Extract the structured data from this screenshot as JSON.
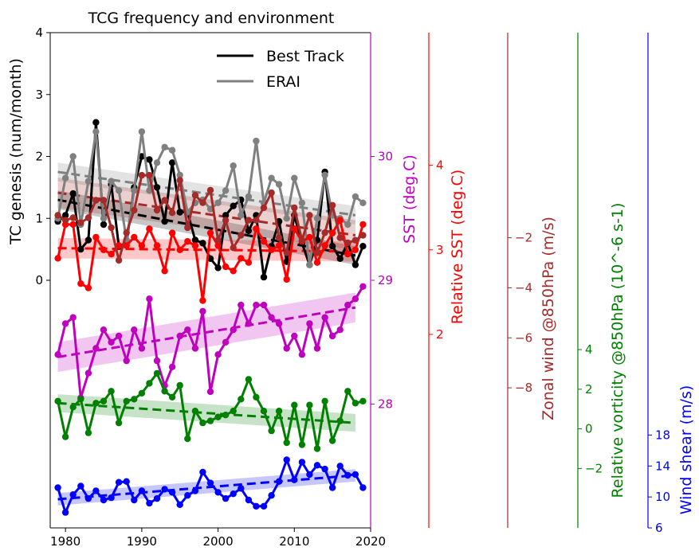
{
  "chart_data": {
    "type": "line",
    "title": "TCG frequency and environment",
    "x_axis": {
      "range": [
        1978,
        2020
      ],
      "ticks": [
        1980,
        1990,
        2000,
        2010,
        2020
      ]
    },
    "legend": {
      "placement": "top-right",
      "entries": [
        {
          "label": "Best Track",
          "color": "#000000"
        },
        {
          "label": "ERAI",
          "color": "#808080"
        }
      ]
    },
    "axes": [
      {
        "key": "tcg",
        "label": "TC genesis (num/month)",
        "color": "#000000",
        "range": [
          -4,
          4
        ],
        "ticks": [
          0,
          1,
          2,
          3,
          4
        ]
      },
      {
        "key": "sst",
        "label": "SST (deg.C)",
        "color": "#bf00bf",
        "range": [
          27.0,
          31.0
        ],
        "ticks": [
          28,
          29,
          30
        ]
      },
      {
        "key": "rsst",
        "label": "Relative SST (deg.C)",
        "color": "#ff0000",
        "range": [
          -0.29,
          5.57
        ],
        "ticks": [
          2,
          3,
          4
        ]
      },
      {
        "key": "zonal",
        "label": "Zonal wind @850hPa (m/s)",
        "color": "#a52a2a",
        "range": [
          -13.6,
          6.2
        ],
        "ticks": [
          -8,
          -6,
          -4,
          -2
        ],
        "tick_labels": [
          "−8",
          "−6",
          "−4",
          "−2"
        ]
      },
      {
        "key": "vort",
        "label": "Relative vorticity @850hPa (10^-6 s-1)",
        "color": "#008000",
        "range": [
          -5,
          20
        ],
        "ticks": [
          -2,
          0,
          2,
          4
        ],
        "tick_labels": [
          "−2",
          "0",
          "2",
          "4"
        ]
      },
      {
        "key": "shear",
        "label": "Wind shear (m/s)",
        "color": "#0000ff",
        "range": [
          6,
          70
        ],
        "ticks": [
          6,
          10,
          14,
          18
        ]
      }
    ],
    "series": [
      {
        "name": "Best Track",
        "axis": "tcg",
        "color": "#000000",
        "values": [
          0.95,
          1.05,
          1.4,
          0.5,
          0.65,
          2.55,
          0.9,
          1.55,
          0.55,
          0.6,
          1.5,
          2.0,
          1.95,
          1.5,
          0.95,
          1.9,
          1.1,
          1.1,
          0.65,
          0.6,
          0.35,
          0.2,
          1.05,
          1.2,
          1.3,
          0.8,
          1.05,
          0.05,
          0.55,
          0.95,
          0.3,
          1.05,
          0.6,
          0.25,
          0.65,
          1.75,
          0.55,
          0.35,
          0.6,
          0.25,
          0.55
        ],
        "trend": [
          1.3,
          0.4
        ],
        "band": 0.15
      },
      {
        "name": "ERAI",
        "axis": "tcg",
        "color": "#808080",
        "values": [
          1.0,
          1.65,
          2.0,
          0.9,
          1.6,
          2.4,
          1.0,
          1.6,
          1.45,
          0.65,
          1.45,
          2.4,
          1.45,
          1.9,
          2.15,
          2.1,
          1.7,
          1.1,
          1.25,
          1.3,
          1.15,
          1.25,
          1.45,
          1.85,
          1.05,
          1.35,
          2.25,
          1.25,
          1.65,
          1.55,
          1.0,
          1.65,
          1.25,
          0.25,
          1.0,
          1.7,
          1.05,
          1.0,
          0.9,
          1.35,
          1.25
        ],
        "trend": [
          1.75,
          1.05
        ],
        "band": 0.15
      },
      {
        "values": [
          28.4,
          28.65,
          28.7,
          28.05,
          28.25,
          28.45,
          28.6,
          28.5,
          28.55,
          28.35,
          28.6,
          28.45,
          28.85,
          28.35,
          28.15,
          28.3,
          28.55,
          28.6,
          28.45,
          28.75,
          28.1,
          28.4,
          28.5,
          28.6,
          28.8,
          28.65,
          28.8,
          28.8,
          28.7,
          28.65,
          28.45,
          28.55,
          28.4,
          28.65,
          28.45,
          28.7,
          28.55,
          28.6,
          28.8,
          28.85,
          28.95
        ],
        "axis": "sst",
        "color": "#bf00bf",
        "trend": [
          28.38,
          28.78
        ],
        "band": 0.12
      },
      {
        "axis": "rsst",
        "color": "#ff0000",
        "values": [
          2.9,
          3.3,
          3.3,
          2.6,
          2.55,
          3.15,
          3.0,
          2.95,
          3.05,
          3.05,
          3.15,
          3.05,
          3.25,
          3.05,
          2.75,
          3.2,
          3.0,
          3.1,
          3.05,
          2.4,
          3.2,
          3.05,
          2.8,
          2.75,
          2.9,
          2.85,
          3.25,
          3.1,
          3.0,
          3.05,
          2.65,
          3.25,
          3.1,
          3.15,
          2.85,
          3.05,
          3.2,
          3.35,
          2.95,
          3.0,
          3.3
        ],
        "trend": [
          3.02,
          2.98
        ],
        "band": 0.12
      },
      {
        "axis": "zonal",
        "color": "#a52a2a",
        "values": [
          -1.1,
          -1.3,
          -1.2,
          -1.4,
          -1.2,
          -0.5,
          -0.5,
          -1.6,
          -2.9,
          -1.8,
          -0.9,
          0.5,
          0.5,
          -0.9,
          -0.5,
          -1.0,
          0.3,
          -1.6,
          -0.3,
          -0.6,
          -0.1,
          -2.1,
          -1.3,
          -2.4,
          -1.9,
          -1.3,
          -1.3,
          -0.8,
          -0.2,
          -2.0,
          -2.6,
          -0.8,
          -2.1,
          -1.1,
          -2.6,
          -1.8,
          -0.7,
          -2.0,
          -2.2,
          -2.1,
          -1.9
        ],
        "trend": [
          -0.2,
          -1.9
        ],
        "band": 0.6
      },
      {
        "axis": "vort",
        "color": "#008000",
        "values": [
          1.4,
          -0.4,
          1.1,
          1.5,
          -0.2,
          1.3,
          1.4,
          1.9,
          0.3,
          1.4,
          1.5,
          1.8,
          2.3,
          2.8,
          1.9,
          1.6,
          2.2,
          -0.5,
          0.9,
          0.3,
          0.4,
          0.6,
          0.7,
          0.9,
          1.5,
          2.5,
          1.6,
          0.9,
          -0.1,
          0.9,
          -0.7,
          1.2,
          -0.8,
          1.2,
          -1.0,
          1.4,
          -0.6,
          0.4,
          1.9,
          1.3,
          1.4
        ],
        "trend": [
          1.3,
          0.3
        ],
        "band": 0.45
      },
      {
        "axis": "shear",
        "color": "#0000ff",
        "values": [
          11.2,
          8.0,
          10.3,
          11.4,
          9.8,
          10.8,
          9.6,
          9.9,
          11.9,
          12.0,
          9.6,
          10.8,
          9.2,
          9.8,
          11.0,
          10.6,
          9.0,
          10.2,
          10.8,
          13.2,
          11.8,
          10.6,
          9.8,
          10.4,
          11.1,
          9.6,
          8.8,
          8.8,
          10.2,
          12.0,
          14.8,
          12.2,
          14.5,
          12.9,
          14.1,
          13.6,
          11.2,
          14.0,
          12.8,
          12.9,
          11.2
        ],
        "trend": [
          9.7,
          12.8
        ],
        "band": 0.8
      }
    ]
  }
}
